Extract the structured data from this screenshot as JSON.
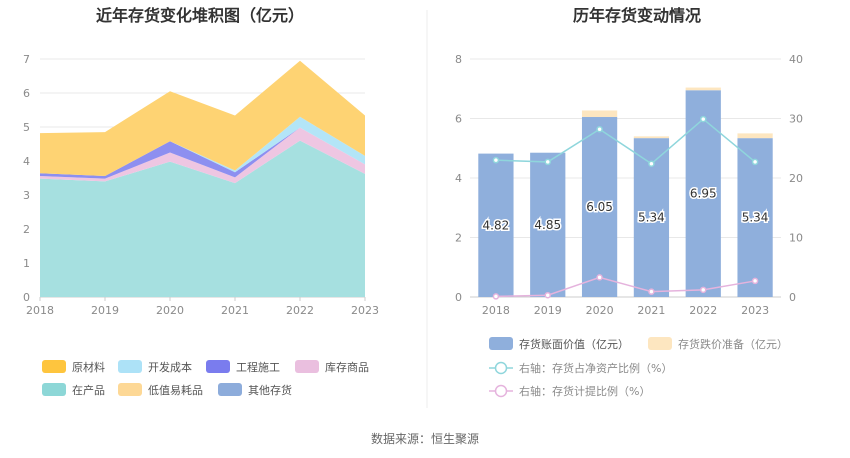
{
  "source": "数据来源：恒生聚源",
  "chart_data": [
    {
      "type": "area",
      "stacked": true,
      "title": "近年存货变化堆积图（亿元）",
      "categories": [
        "2018",
        "2019",
        "2020",
        "2021",
        "2022",
        "2023"
      ],
      "ylim": [
        0,
        7
      ],
      "yticks": [
        "0",
        "1",
        "2",
        "3",
        "4",
        "5",
        "6",
        "7"
      ],
      "grid": true,
      "legend_position": "bottom",
      "series": [
        {
          "name": "在产品",
          "color": "#a6e0e0",
          "values": [
            3.48,
            3.4,
            3.98,
            3.35,
            4.6,
            3.62
          ]
        },
        {
          "name": "库存商品",
          "color": "#eec6e2",
          "values": [
            0.08,
            0.08,
            0.27,
            0.17,
            0.38,
            0.28
          ]
        },
        {
          "name": "工程施工",
          "color": "#8d8ff0",
          "values": [
            0.08,
            0.08,
            0.33,
            0.15,
            0.0,
            0.0
          ]
        },
        {
          "name": "开发成本",
          "color": "#b3e5f7",
          "values": [
            0.0,
            0.0,
            0.0,
            0.05,
            0.32,
            0.25
          ]
        },
        {
          "name": "低值易耗品",
          "color": "#fcd9a0",
          "values": [
            0.0,
            0.0,
            0.0,
            0.0,
            0.0,
            0.0
          ]
        },
        {
          "name": "其他存货",
          "color": "#8fafdc",
          "values": [
            0.0,
            0.0,
            0.0,
            0.0,
            0.0,
            0.0
          ]
        },
        {
          "name": "原材料",
          "color": "#fed373",
          "values": [
            1.18,
            1.29,
            1.47,
            1.62,
            1.65,
            1.19
          ]
        }
      ],
      "legend_order": [
        "原材料",
        "开发成本",
        "工程施工",
        "库存商品",
        "在产品",
        "低值易耗品",
        "其他存货"
      ],
      "legend_colors": {
        "原材料": "#fec53e",
        "开发成本": "#ade2f7",
        "工程施工": "#7a7cee",
        "库存商品": "#eabfdf",
        "在产品": "#8dd7d7",
        "低值易耗品": "#fdd896",
        "其他存货": "#8dacdb"
      }
    },
    {
      "type": "bar",
      "title": "历年存货变动情况",
      "categories": [
        "2018",
        "2019",
        "2020",
        "2021",
        "2022",
        "2023"
      ],
      "ylim": [
        0,
        8
      ],
      "yticks": [
        "0",
        "2",
        "4",
        "6",
        "8"
      ],
      "y2lim": [
        0,
        40
      ],
      "y2ticks": [
        "0",
        "10",
        "20",
        "30",
        "40"
      ],
      "grid": true,
      "legend_position": "bottom",
      "series": [
        {
          "name": "存货账面价值（亿元）",
          "color": "#8fafdc",
          "values": [
            4.82,
            4.85,
            6.05,
            5.34,
            6.95,
            5.34
          ],
          "labels": [
            "4.82",
            "4.85",
            "6.05",
            "5.34",
            "6.95",
            "5.34"
          ]
        },
        {
          "name": "存货跌价准备（亿元）",
          "color": "#fde6c0",
          "values": [
            0.0,
            0.0,
            0.22,
            0.06,
            0.09,
            0.16
          ]
        },
        {
          "name": "右轴：存货占净资产比例（%）",
          "color": "#8fd6dc",
          "axis": "right",
          "values": [
            23.0,
            22.7,
            28.2,
            22.4,
            29.9,
            22.7
          ]
        },
        {
          "name": "右轴：存货计提比例（%）",
          "color": "#e5b3dd",
          "axis": "right",
          "values": [
            0.1,
            0.3,
            3.3,
            0.9,
            1.2,
            2.7
          ]
        }
      ]
    }
  ]
}
